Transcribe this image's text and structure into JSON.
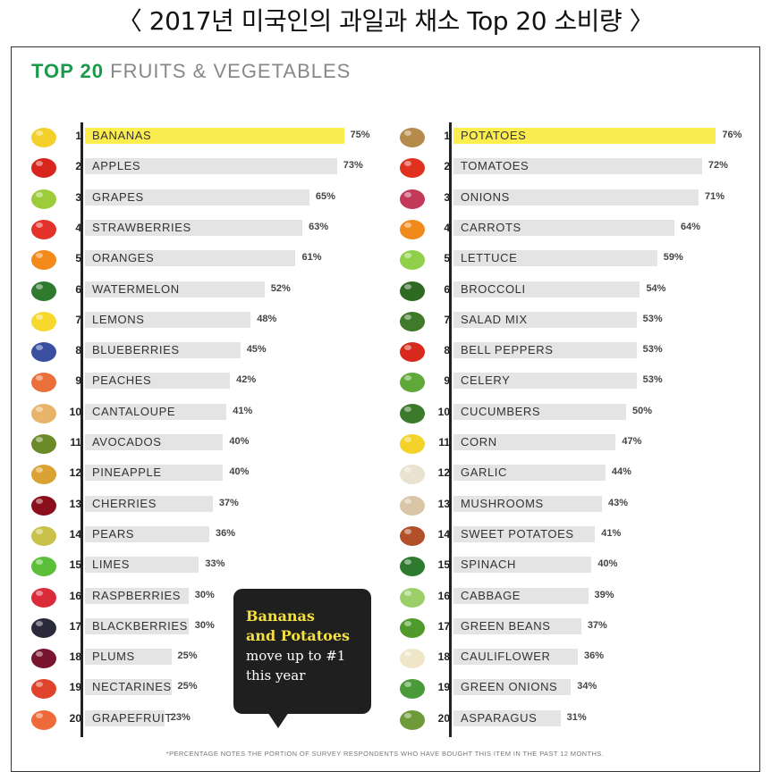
{
  "page": {
    "title": "〈 2017년 미국인의 과일과 채소 Top 20 소비량 〉",
    "heading_accent": "TOP 20",
    "heading_rest": " FRUITS & VEGETABLES",
    "callout": {
      "line1": "Bananas",
      "line2": "and Potatoes",
      "line3": "move up to #1",
      "line4": "this year"
    },
    "footnote": "*PERCENTAGE NOTES THE PORTION OF SURVEY RESPONDENTS WHO HAVE BOUGHT THIS ITEM IN THE PAST 12 MONTHS."
  },
  "chart_data": [
    {
      "type": "bar",
      "orientation": "horizontal",
      "unit": "%",
      "highlight_color": "#fbec4f",
      "bar_color": "#e4e4e4",
      "ranks": [
        1,
        2,
        3,
        4,
        5,
        6,
        7,
        8,
        9,
        10,
        11,
        12,
        13,
        14,
        15,
        16,
        17,
        18,
        19,
        20
      ],
      "categories": [
        "BANANAS",
        "APPLES",
        "GRAPES",
        "STRAWBERRIES",
        "ORANGES",
        "WATERMELON",
        "LEMONS",
        "BLUEBERRIES",
        "PEACHES",
        "CANTALOUPE",
        "AVOCADOS",
        "PINEAPPLE",
        "CHERRIES",
        "PEARS",
        "LIMES",
        "RASPBERRIES",
        "BLACKBERRIES",
        "PLUMS",
        "NECTARINES",
        "GRAPEFRUIT"
      ],
      "values": [
        75,
        73,
        65,
        63,
        61,
        52,
        48,
        45,
        42,
        41,
        40,
        40,
        37,
        36,
        33,
        30,
        30,
        25,
        25,
        23
      ],
      "icons": [
        "banana-icon",
        "apple-icon",
        "grapes-icon",
        "strawberry-icon",
        "orange-icon",
        "watermelon-icon",
        "lemon-icon",
        "blueberries-icon",
        "peaches-icon",
        "cantaloupe-icon",
        "avocado-icon",
        "pineapple-icon",
        "cherries-icon",
        "pears-icon",
        "lime-icon",
        "raspberry-icon",
        "blackberry-icon",
        "plum-icon",
        "nectarine-icon",
        "grapefruit-icon"
      ],
      "icon_colors": [
        "#f3cf2b",
        "#d8251e",
        "#9ccc3a",
        "#e2322a",
        "#f48a1a",
        "#2f7a2e",
        "#f6d92c",
        "#3a4fa0",
        "#e9703a",
        "#e8b36a",
        "#6b8a2a",
        "#d9a232",
        "#8a0e1c",
        "#c9c24a",
        "#5cbf3a",
        "#d92b3a",
        "#2a2a3a",
        "#7a1530",
        "#e0432b",
        "#ef6a3a"
      ]
    },
    {
      "type": "bar",
      "orientation": "horizontal",
      "unit": "%",
      "highlight_color": "#fbec4f",
      "bar_color": "#e4e4e4",
      "ranks": [
        1,
        2,
        3,
        4,
        5,
        6,
        7,
        8,
        9,
        10,
        11,
        12,
        13,
        14,
        15,
        16,
        17,
        18,
        19,
        20
      ],
      "categories": [
        "POTATOES",
        "TOMATOES",
        "ONIONS",
        "CARROTS",
        "LETTUCE",
        "BROCCOLI",
        "SALAD MIX",
        "BELL PEPPERS",
        "CELERY",
        "CUCUMBERS",
        "CORN",
        "GARLIC",
        "MUSHROOMS",
        "SWEET POTATOES",
        "SPINACH",
        "CABBAGE",
        "GREEN BEANS",
        "CAULIFLOWER",
        "GREEN ONIONS",
        "ASPARAGUS"
      ],
      "values": [
        76,
        72,
        71,
        64,
        59,
        54,
        53,
        53,
        53,
        50,
        47,
        44,
        43,
        41,
        40,
        39,
        37,
        36,
        34,
        31
      ],
      "icons": [
        "potato-icon",
        "tomato-icon",
        "onion-icon",
        "carrot-icon",
        "lettuce-icon",
        "broccoli-icon",
        "salad-mix-icon",
        "bell-pepper-icon",
        "celery-icon",
        "cucumber-icon",
        "corn-icon",
        "garlic-icon",
        "mushroom-icon",
        "sweet-potato-icon",
        "spinach-icon",
        "cabbage-icon",
        "green-beans-icon",
        "cauliflower-icon",
        "green-onion-icon",
        "asparagus-icon"
      ],
      "icon_colors": [
        "#b58a4a",
        "#e0301e",
        "#c23a5a",
        "#f08a1c",
        "#8fcf4a",
        "#2f6a22",
        "#3f7a2a",
        "#d7291c",
        "#5fa83a",
        "#3a7a2a",
        "#f3d22a",
        "#e8e2cf",
        "#d9c6a6",
        "#b2502a",
        "#2e7a2e",
        "#9ccf6a",
        "#4f9a2a",
        "#efe6c8",
        "#4a9a3a",
        "#6f9a3a"
      ]
    }
  ]
}
